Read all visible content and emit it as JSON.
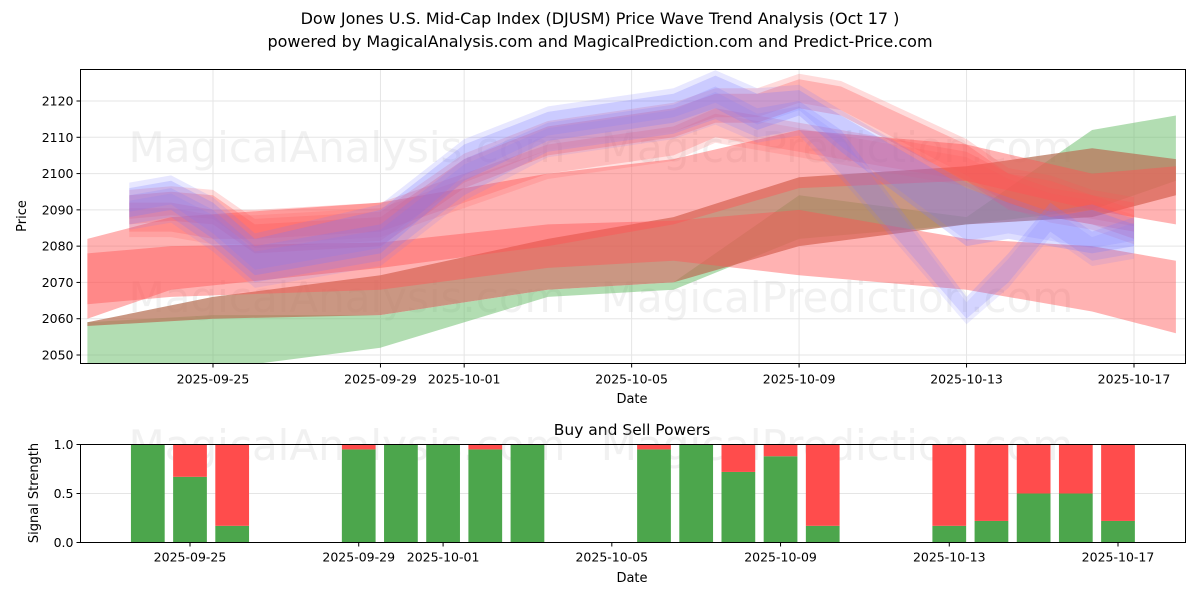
{
  "header": {
    "title": "Dow Jones U.S. Mid-Cap Index (DJUSM) Price Wave Trend Analysis (Oct 17 )",
    "subtitle": "powered by MagicalAnalysis.com and MagicalPrediction.com and Predict-Price.com"
  },
  "watermarks": [
    "MagicalAnalysis.com",
    "MagicalPrediction.com"
  ],
  "colors": {
    "buy": "#4ca64c",
    "sell": "#ff4c4c",
    "blue_wave": "#7777ff",
    "red_wave": "#ff5555",
    "green_wave": "#66bb66",
    "brown_wave": "#b8745a"
  },
  "chart_data": [
    {
      "type": "area",
      "title": "",
      "xlabel": "Date",
      "ylabel": "Price",
      "ylim": [
        2048,
        2128
      ],
      "yticks": [
        2050,
        2060,
        2070,
        2080,
        2090,
        2100,
        2110,
        2120
      ],
      "xticks": [
        "2025-09-25",
        "2025-09-29",
        "2025-10-01",
        "2025-10-05",
        "2025-10-09",
        "2025-10-13",
        "2025-10-17"
      ],
      "xlim": [
        "2025-09-21",
        "2025-10-18"
      ],
      "grid": true,
      "series": [
        {
          "name": "blue-wave-1",
          "color": "blue",
          "opacity": 0.25,
          "x": [
            "2025-09-23",
            "2025-09-24",
            "2025-09-25",
            "2025-09-26",
            "2025-09-29",
            "2025-10-01",
            "2025-10-03",
            "2025-10-06",
            "2025-10-07",
            "2025-10-08",
            "2025-10-09",
            "2025-10-10",
            "2025-10-13",
            "2025-10-14",
            "2025-10-15",
            "2025-10-16",
            "2025-10-17"
          ],
          "upper": [
            2096,
            2098,
            2092,
            2082,
            2090,
            2108,
            2117,
            2122,
            2127,
            2122,
            2123,
            2116,
            2096,
            2092,
            2088,
            2090,
            2086
          ],
          "lower": [
            2088,
            2090,
            2082,
            2072,
            2078,
            2098,
            2109,
            2114,
            2118,
            2112,
            2116,
            2106,
            2080,
            2082,
            2080,
            2078,
            2080
          ]
        },
        {
          "name": "blue-wave-2",
          "color": "blue",
          "opacity": 0.2,
          "x": [
            "2025-09-23",
            "2025-09-24",
            "2025-09-25",
            "2025-09-26",
            "2025-09-29",
            "2025-10-01",
            "2025-10-03",
            "2025-10-06",
            "2025-10-07",
            "2025-10-08",
            "2025-10-09",
            "2025-10-10",
            "2025-10-13",
            "2025-10-14",
            "2025-10-15",
            "2025-10-16",
            "2025-10-17"
          ],
          "upper": [
            2094,
            2096,
            2090,
            2080,
            2086,
            2104,
            2114,
            2119,
            2124,
            2118,
            2120,
            2112,
            2066,
            2078,
            2092,
            2084,
            2088
          ],
          "lower": [
            2086,
            2088,
            2080,
            2070,
            2076,
            2094,
            2106,
            2111,
            2115,
            2110,
            2112,
            2100,
            2060,
            2070,
            2084,
            2076,
            2078
          ]
        },
        {
          "name": "red-wave-1",
          "color": "red",
          "opacity": 0.3,
          "x": [
            "2025-09-23",
            "2025-09-24",
            "2025-09-25",
            "2025-09-26",
            "2025-09-29",
            "2025-10-01",
            "2025-10-03",
            "2025-10-06",
            "2025-10-07",
            "2025-10-08",
            "2025-10-09",
            "2025-10-10",
            "2025-10-13",
            "2025-10-14",
            "2025-10-15",
            "2025-10-16",
            "2025-10-17"
          ],
          "upper": [
            2094,
            2095,
            2094,
            2086,
            2088,
            2104,
            2113,
            2118,
            2122,
            2122,
            2126,
            2124,
            2108,
            2100,
            2098,
            2094,
            2092
          ],
          "lower": [
            2086,
            2087,
            2086,
            2078,
            2080,
            2096,
            2105,
            2110,
            2114,
            2114,
            2118,
            2116,
            2098,
            2090,
            2088,
            2086,
            2084
          ]
        },
        {
          "name": "red-wave-2",
          "color": "red",
          "opacity": 0.25,
          "x": [
            "2025-09-23",
            "2025-09-24",
            "2025-09-25",
            "2025-09-26",
            "2025-09-29",
            "2025-10-01",
            "2025-10-03",
            "2025-10-06",
            "2025-10-07",
            "2025-10-08",
            "2025-10-09",
            "2025-10-10",
            "2025-10-13",
            "2025-10-14",
            "2025-10-15",
            "2025-10-16",
            "2025-10-17"
          ],
          "upper": [
            2092,
            2092,
            2090,
            2090,
            2092,
            2100,
            2108,
            2113,
            2118,
            2116,
            2114,
            2112,
            2106,
            2100,
            2096,
            2094,
            2090
          ],
          "lower": [
            2084,
            2084,
            2082,
            2082,
            2084,
            2092,
            2100,
            2105,
            2110,
            2108,
            2106,
            2104,
            2098,
            2092,
            2088,
            2086,
            2082
          ]
        },
        {
          "name": "red-wide-band-upper",
          "color": "red",
          "opacity": 0.45,
          "x": [
            "2025-09-22",
            "2025-09-24",
            "2025-09-29",
            "2025-10-03",
            "2025-10-06",
            "2025-10-09",
            "2025-10-13",
            "2025-10-16",
            "2025-10-18"
          ],
          "upper": [
            2082,
            2088,
            2092,
            2100,
            2104,
            2112,
            2108,
            2100,
            2102
          ],
          "lower": [
            2060,
            2068,
            2074,
            2080,
            2086,
            2096,
            2098,
            2090,
            2086
          ]
        },
        {
          "name": "red-wide-band-lower",
          "color": "red",
          "opacity": 0.45,
          "x": [
            "2025-09-22",
            "2025-09-24",
            "2025-09-29",
            "2025-10-03",
            "2025-10-06",
            "2025-10-09",
            "2025-10-13",
            "2025-10-16",
            "2025-10-18"
          ],
          "upper": [
            2078,
            2080,
            2081,
            2086,
            2087,
            2090,
            2082,
            2080,
            2076
          ],
          "lower": [
            2064,
            2066,
            2068,
            2074,
            2076,
            2072,
            2068,
            2062,
            2056
          ]
        },
        {
          "name": "green-band",
          "color": "green",
          "opacity": 0.5,
          "x": [
            "2025-09-22",
            "2025-09-25",
            "2025-09-29",
            "2025-10-03",
            "2025-10-06",
            "2025-10-09",
            "2025-10-13",
            "2025-10-16",
            "2025-10-18"
          ],
          "upper": [
            2059,
            2061,
            2061,
            2068,
            2070,
            2094,
            2088,
            2112,
            2116
          ],
          "lower": [
            2042,
            2046,
            2052,
            2066,
            2068,
            2082,
            2086,
            2090,
            2098
          ]
        },
        {
          "name": "brown-band",
          "color": "brown",
          "opacity": 0.75,
          "x": [
            "2025-09-22",
            "2025-09-25",
            "2025-09-29",
            "2025-10-03",
            "2025-10-06",
            "2025-10-09",
            "2025-10-13",
            "2025-10-16",
            "2025-10-18"
          ],
          "upper": [
            2059,
            2066,
            2072,
            2082,
            2088,
            2099,
            2102,
            2107,
            2104
          ],
          "lower": [
            2058,
            2060,
            2061,
            2068,
            2070,
            2080,
            2086,
            2088,
            2094
          ]
        }
      ]
    },
    {
      "type": "bar",
      "stacked": true,
      "title": "Buy and Sell Powers",
      "xlabel": "Date",
      "ylabel": "Signal Strength",
      "ylim": [
        0,
        1
      ],
      "yticks": [
        "0.0",
        "0.5",
        "1.0"
      ],
      "xticks": [
        "2025-09-25",
        "2025-09-29",
        "2025-10-01",
        "2025-10-05",
        "2025-10-09",
        "2025-10-13",
        "2025-10-17"
      ],
      "xlim": [
        "2025-09-21",
        "2025-10-18"
      ],
      "grid": true,
      "categories": [
        "2025-09-24",
        "2025-09-25",
        "2025-09-26",
        "2025-09-29",
        "2025-09-30",
        "2025-10-01",
        "2025-10-02",
        "2025-10-03",
        "2025-10-06",
        "2025-10-07",
        "2025-10-08",
        "2025-10-09",
        "2025-10-10",
        "2025-10-13",
        "2025-10-14",
        "2025-10-15",
        "2025-10-16",
        "2025-10-17"
      ],
      "series": [
        {
          "name": "Buy",
          "values": [
            1.0,
            0.67,
            0.17,
            0.95,
            1.0,
            1.0,
            0.95,
            1.0,
            0.95,
            1.0,
            0.72,
            0.88,
            0.17,
            0.17,
            0.22,
            0.5,
            0.5,
            0.22
          ]
        },
        {
          "name": "Sell",
          "values": [
            0.0,
            0.33,
            0.83,
            0.05,
            0.0,
            0.0,
            0.05,
            0.0,
            0.05,
            0.0,
            0.28,
            0.12,
            0.83,
            0.83,
            0.78,
            0.5,
            0.5,
            0.78
          ]
        }
      ]
    }
  ]
}
